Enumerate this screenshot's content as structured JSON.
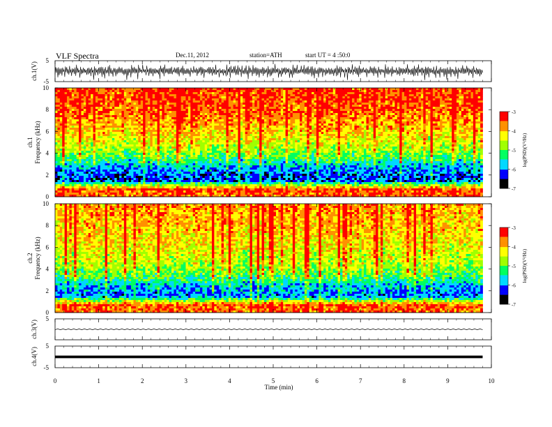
{
  "header": {
    "title": "VLF  Spectra",
    "date": "Dec.11, 2012",
    "station": "station=ATH",
    "start": "start  UT  =   4  :50:0"
  },
  "colors": {
    "scale": [
      "#000000",
      "#0000ff",
      "#00d8ff",
      "#00ff60",
      "#a0ff00",
      "#ffff00",
      "#ff9000",
      "#ff0000",
      "#ffffff"
    ],
    "trace": "#000000"
  },
  "chart_data": [
    {
      "type": "line",
      "panel": "ch1-waveform",
      "ylabel": "ch.1(V)",
      "ylim": [
        -5,
        5
      ],
      "yticks": [
        "5",
        "-5"
      ],
      "series": [
        {
          "values": [
            -1.4,
            1.6,
            -1.2,
            1.8,
            -2.6,
            2.2,
            -1.5,
            1.3,
            -3.3,
            2.4,
            -1.7,
            1.4,
            -1.1,
            1.8,
            -2.5,
            2.7
          ]
        }
      ]
    },
    {
      "type": "heatmap",
      "panel": "ch1-spectrogram",
      "ylabel": [
        "ch.1",
        "Frequency  (kHz)"
      ],
      "ylim": [
        0,
        10
      ],
      "yticks": [
        "0",
        "2",
        "4",
        "6",
        "8",
        "10"
      ],
      "colorbar": {
        "label": "log(PSD)(V²/Hz)",
        "range": [
          -7,
          -3
        ],
        "ticks": [
          "-3",
          "-4",
          "-5",
          "-6",
          "-7"
        ]
      },
      "profile": [
        {
          "freq_khz": 0.3,
          "log_psd": -3.6
        },
        {
          "freq_khz": 0.7,
          "log_psd": -3.5
        },
        {
          "freq_khz": 1.5,
          "log_psd": -6.3
        },
        {
          "freq_khz": 2.5,
          "log_psd": -6.0
        },
        {
          "freq_khz": 3.5,
          "log_psd": -5.2
        },
        {
          "freq_khz": 4.5,
          "log_psd": -4.6
        },
        {
          "freq_khz": 6.0,
          "log_psd": -4.1
        },
        {
          "freq_khz": 8.0,
          "log_psd": -3.6
        },
        {
          "freq_khz": 10.0,
          "log_psd": -3.4
        }
      ],
      "time_extent_min": [
        0,
        9.8
      ]
    },
    {
      "type": "heatmap",
      "panel": "ch2-spectrogram",
      "ylabel": [
        "ch.2",
        "Frequency  (kHz)"
      ],
      "ylim": [
        0,
        10
      ],
      "yticks": [
        "0",
        "2",
        "4",
        "6",
        "8",
        "10"
      ],
      "colorbar": {
        "label": "log(PSD)(V²/Hz)",
        "range": [
          -7,
          -3
        ],
        "ticks": [
          "-3",
          "-4",
          "-5",
          "-6",
          "-7"
        ]
      },
      "profile": [
        {
          "freq_khz": 0.3,
          "log_psd": -3.6
        },
        {
          "freq_khz": 0.7,
          "log_psd": -3.5
        },
        {
          "freq_khz": 1.5,
          "log_psd": -6.1
        },
        {
          "freq_khz": 2.5,
          "log_psd": -5.7
        },
        {
          "freq_khz": 3.5,
          "log_psd": -5.0
        },
        {
          "freq_khz": 4.5,
          "log_psd": -4.6
        },
        {
          "freq_khz": 6.0,
          "log_psd": -4.3
        },
        {
          "freq_khz": 8.0,
          "log_psd": -4.0
        },
        {
          "freq_khz": 10.0,
          "log_psd": -3.8
        }
      ],
      "time_extent_min": [
        0,
        9.8
      ]
    },
    {
      "type": "line",
      "panel": "ch3-waveform",
      "ylabel": "ch.3(V)",
      "ylim": [
        -5,
        5
      ],
      "yticks": [
        "5"
      ],
      "series": [
        {
          "values": [
            -0.2,
            0.2,
            -0.2,
            0.2
          ]
        }
      ]
    },
    {
      "type": "line",
      "panel": "ch4-waveform",
      "ylabel": "ch.4(V)",
      "ylim": [
        -5,
        5
      ],
      "yticks": [
        "5",
        "-5"
      ],
      "series": [
        {
          "values": [
            -0.6,
            0.6,
            -0.6,
            0.6
          ]
        }
      ]
    },
    {
      "type": "axis",
      "panel": "time-axis",
      "xlabel": "Time  (min)",
      "xlim": [
        0,
        10
      ],
      "xticks": [
        "0",
        "1",
        "2",
        "3",
        "4",
        "5",
        "6",
        "7",
        "8",
        "9",
        "10"
      ]
    }
  ]
}
